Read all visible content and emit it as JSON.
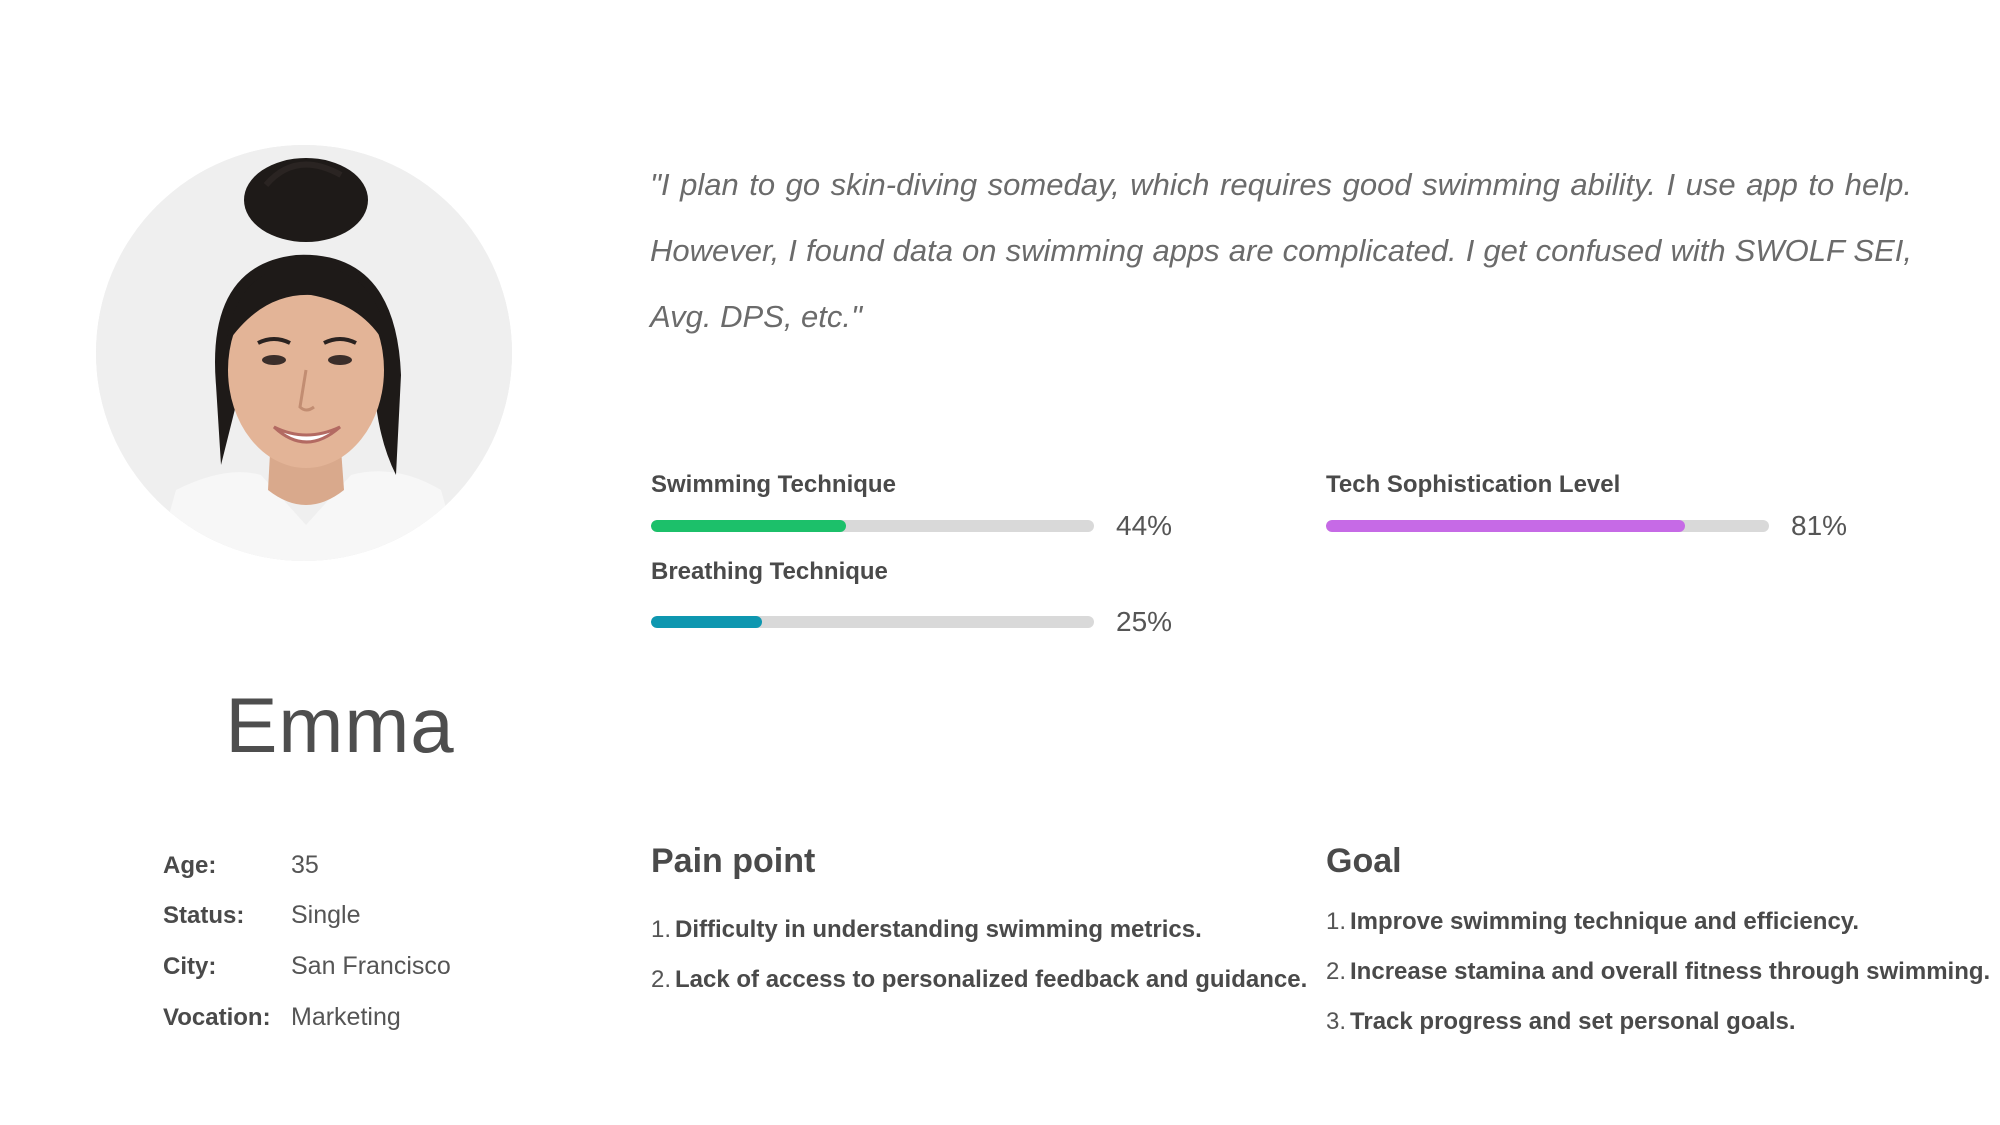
{
  "persona": {
    "name": "Emma",
    "info": [
      {
        "label": "Age:",
        "value": "35"
      },
      {
        "label": "Status:",
        "value": "Single"
      },
      {
        "label": "City:",
        "value": "San Francisco"
      },
      {
        "label": "Vocation:",
        "value": "Marketing"
      }
    ]
  },
  "quote": "\"I plan to go skin-diving someday, which requires good swimming ability. I use app to help. However, I found data on swimming apps are complicated. I get confused with SWOLF SEI, Avg. DPS, etc.\"",
  "skills": [
    {
      "label": "Swimming Technique",
      "percent_text": "44%",
      "value": 0.44,
      "color": "#1cc06a"
    },
    {
      "label": "Breathing Technique",
      "percent_text": "25%",
      "value": 0.25,
      "color": "#0e97b0"
    },
    {
      "label": "Tech Sophistication Level",
      "percent_text": "81%",
      "value": 0.81,
      "color": "#c66ae6"
    }
  ],
  "pain_point": {
    "title": "Pain point",
    "items": [
      {
        "num": "1.",
        "text": "Difficulty in understanding swimming metrics."
      },
      {
        "num": "2.",
        "text": "Lack of access to personalized feedback and guidance."
      }
    ]
  },
  "goal": {
    "title": "Goal",
    "items": [
      {
        "num": "1.",
        "text": "Improve swimming technique and efficiency."
      },
      {
        "num": "2.",
        "text": "Increase stamina and overall fitness through swimming."
      },
      {
        "num": "3.",
        "text": "Track progress and set personal goals."
      }
    ]
  }
}
